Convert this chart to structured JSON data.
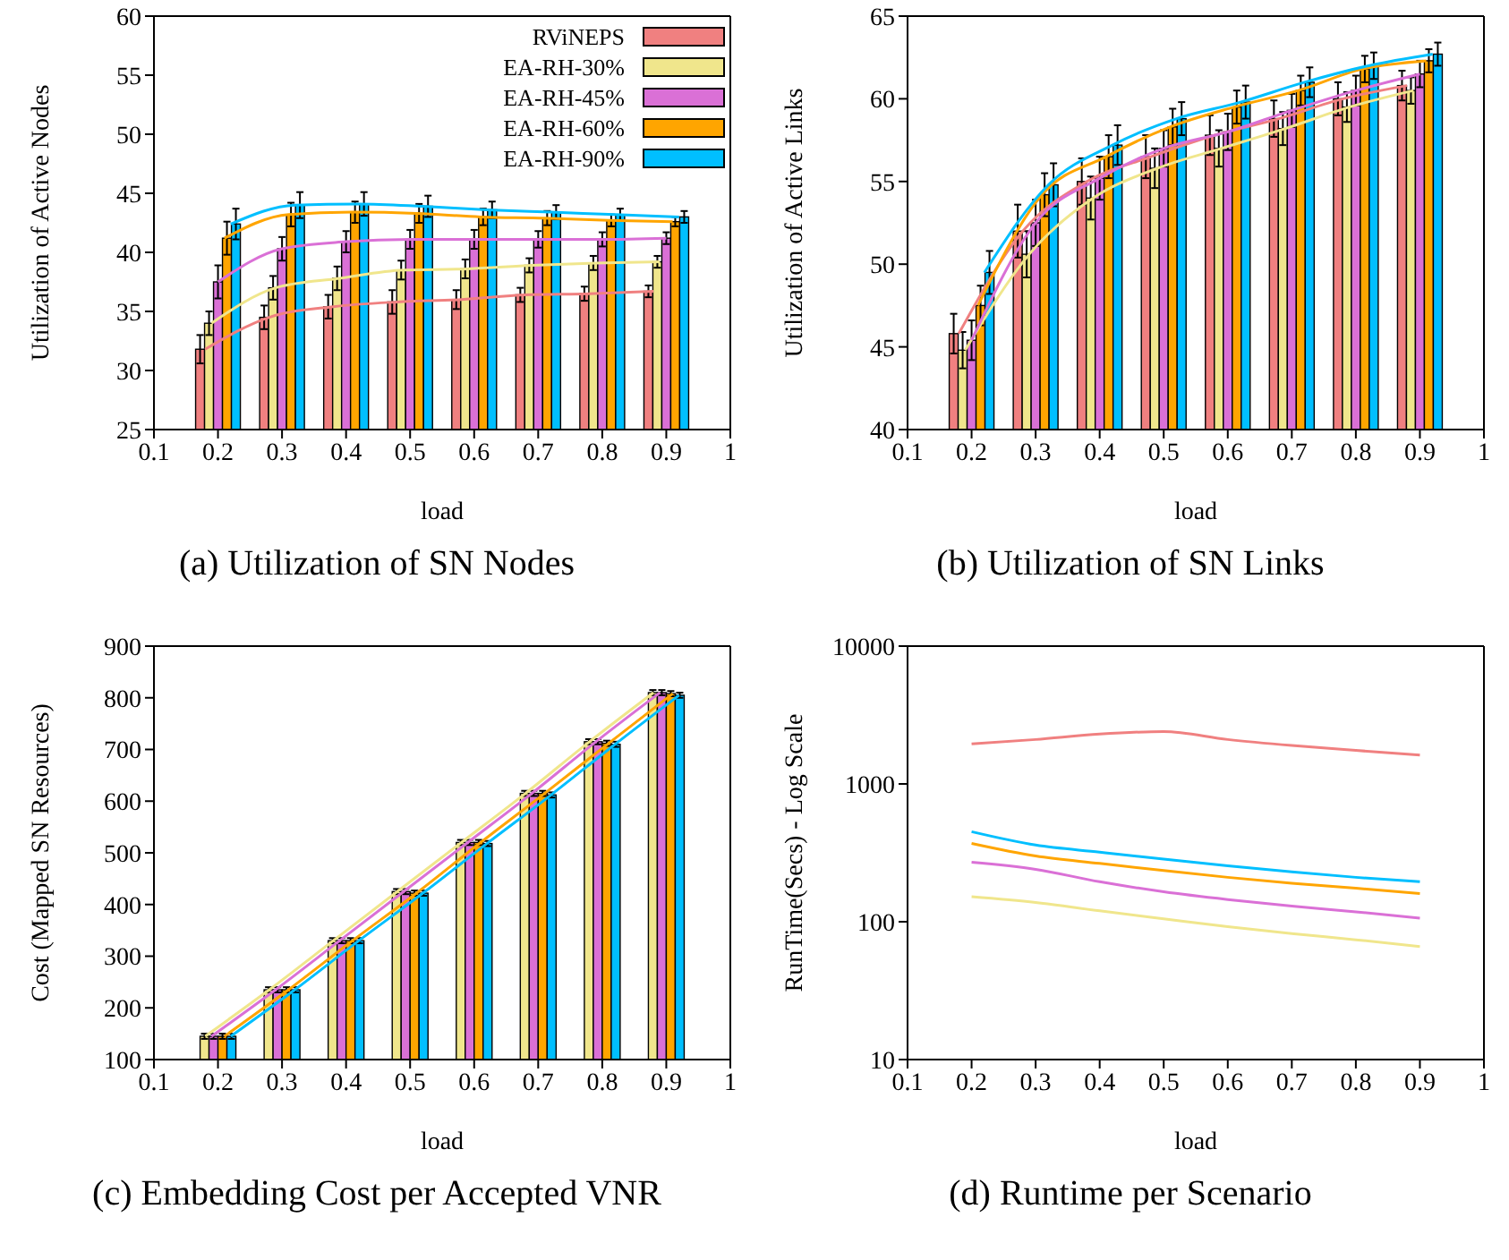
{
  "chart_data": [
    {
      "type": "bar",
      "title": "(a) Utilization of SN Nodes",
      "xlabel": "load",
      "ylabel": "Utilization of Active Nodes",
      "x": [
        0.2,
        0.3,
        0.4,
        0.5,
        0.6,
        0.7,
        0.8,
        0.9
      ],
      "xlim": [
        0.1,
        1
      ],
      "xticks": [
        0.1,
        0.2,
        0.3,
        0.4,
        0.5,
        0.6,
        0.7,
        0.8,
        0.9,
        1
      ],
      "ylim": [
        25,
        60
      ],
      "yticks": [
        25,
        30,
        35,
        40,
        45,
        50,
        55,
        60
      ],
      "legend": "top right",
      "series": [
        {
          "name": "RViNEPS",
          "color": "#f08080",
          "values": [
            31.8,
            34.5,
            35.4,
            35.8,
            36.0,
            36.4,
            36.5,
            36.7
          ],
          "errors": [
            1.2,
            1,
            1,
            1,
            0.8,
            0.6,
            0.6,
            0.5
          ]
        },
        {
          "name": "EA-RH-30%",
          "color": "#f0e68c",
          "values": [
            34.0,
            37.0,
            37.8,
            38.5,
            38.6,
            38.9,
            39.1,
            39.2
          ],
          "errors": [
            1,
            1,
            1,
            0.8,
            0.8,
            0.6,
            0.6,
            0.5
          ]
        },
        {
          "name": "EA-RH-45%",
          "color": "#da70d6",
          "values": [
            37.5,
            40.3,
            40.9,
            41.1,
            41.1,
            41.1,
            41.1,
            41.2
          ],
          "errors": [
            1.4,
            1,
            0.9,
            0.8,
            0.8,
            0.7,
            0.6,
            0.5
          ]
        },
        {
          "name": "EA-RH-60%",
          "color": "#ffa500",
          "values": [
            41.2,
            43.2,
            43.4,
            43.3,
            43.0,
            42.9,
            42.7,
            42.6
          ],
          "errors": [
            1.4,
            1,
            0.9,
            0.8,
            0.7,
            0.6,
            0.5,
            0.4
          ]
        },
        {
          "name": "EA-RH-90%",
          "color": "#00bfff",
          "values": [
            42.4,
            44.0,
            44.1,
            43.9,
            43.6,
            43.4,
            43.2,
            43.0
          ],
          "errors": [
            1.3,
            1.1,
            1,
            0.9,
            0.7,
            0.6,
            0.5,
            0.5
          ]
        },
        {
          "type": "line",
          "color": "#f08080",
          "x": [
            0.18,
            0.28,
            0.38,
            0.48,
            0.58,
            0.68,
            0.78,
            0.88
          ],
          "values": [
            31.8,
            34.5,
            35.4,
            35.8,
            36.0,
            36.4,
            36.5,
            36.7
          ]
        },
        {
          "type": "line",
          "color": "#f0e68c",
          "x": [
            0.19,
            0.29,
            0.39,
            0.49,
            0.59,
            0.69,
            0.79,
            0.89
          ],
          "values": [
            34.0,
            37.0,
            37.8,
            38.5,
            38.6,
            38.9,
            39.1,
            39.2
          ]
        },
        {
          "type": "line",
          "color": "#da70d6",
          "x": [
            0.2,
            0.3,
            0.4,
            0.5,
            0.6,
            0.7,
            0.8,
            0.9
          ],
          "values": [
            37.5,
            40.3,
            40.9,
            41.1,
            41.1,
            41.1,
            41.1,
            41.2
          ]
        },
        {
          "type": "line",
          "color": "#ffa500",
          "x": [
            0.21,
            0.31,
            0.41,
            0.51,
            0.61,
            0.71,
            0.81,
            0.91
          ],
          "values": [
            41.2,
            43.2,
            43.4,
            43.3,
            43.0,
            42.9,
            42.7,
            42.6
          ]
        },
        {
          "type": "line",
          "color": "#00bfff",
          "x": [
            0.22,
            0.32,
            0.42,
            0.52,
            0.62,
            0.72,
            0.82,
            0.92
          ],
          "values": [
            42.4,
            44.0,
            44.1,
            43.9,
            43.6,
            43.4,
            43.2,
            43.0
          ]
        }
      ]
    },
    {
      "type": "bar",
      "title": "(b) Utilization of SN Links",
      "xlabel": "load",
      "ylabel": "Utilization of Active Links",
      "x": [
        0.2,
        0.3,
        0.4,
        0.5,
        0.6,
        0.7,
        0.8,
        0.9
      ],
      "xlim": [
        0.1,
        1
      ],
      "xticks": [
        0.1,
        0.2,
        0.3,
        0.4,
        0.5,
        0.6,
        0.7,
        0.8,
        0.9,
        1
      ],
      "ylim": [
        40,
        65
      ],
      "yticks": [
        40,
        45,
        50,
        55,
        60,
        65
      ],
      "series": [
        {
          "color": "#f08080",
          "values": [
            45.8,
            52.0,
            55.0,
            56.5,
            57.8,
            58.8,
            60.0,
            60.8
          ],
          "errors": [
            1.2,
            1.6,
            1.4,
            1.3,
            1.2,
            1.1,
            1,
            0.9
          ]
        },
        {
          "color": "#f0e68c",
          "values": [
            44.8,
            50.6,
            54.0,
            55.8,
            57.0,
            58.2,
            59.5,
            60.5
          ],
          "errors": [
            1.1,
            1.4,
            1.3,
            1.2,
            1.1,
            1,
            0.9,
            0.8
          ]
        },
        {
          "color": "#da70d6",
          "values": [
            45.4,
            52.5,
            55.2,
            57.0,
            58.0,
            59.3,
            60.5,
            61.5
          ],
          "errors": [
            1.2,
            1.4,
            1.3,
            1.1,
            1.1,
            1,
            0.9,
            0.8
          ]
        },
        {
          "color": "#ffa500",
          "values": [
            47.5,
            54.2,
            56.5,
            58.3,
            59.5,
            60.5,
            61.8,
            62.3
          ],
          "errors": [
            1.2,
            1.3,
            1.3,
            1.1,
            1,
            0.9,
            0.8,
            0.7
          ]
        },
        {
          "color": "#00bfff",
          "values": [
            49.5,
            54.8,
            57.2,
            58.8,
            59.8,
            61.0,
            62.0,
            62.7
          ],
          "errors": [
            1.3,
            1.3,
            1.2,
            1,
            1,
            0.9,
            0.8,
            0.7
          ]
        },
        {
          "type": "line",
          "color": "#f08080",
          "x": [
            0.18,
            0.28,
            0.38,
            0.48,
            0.58,
            0.68,
            0.78,
            0.88
          ],
          "values": [
            45.8,
            52.0,
            55.0,
            56.5,
            57.8,
            58.8,
            60.0,
            60.8
          ]
        },
        {
          "type": "line",
          "color": "#f0e68c",
          "x": [
            0.19,
            0.29,
            0.39,
            0.49,
            0.59,
            0.69,
            0.79,
            0.89
          ],
          "values": [
            44.8,
            50.6,
            54.0,
            55.8,
            57.0,
            58.2,
            59.5,
            60.5
          ]
        },
        {
          "type": "line",
          "color": "#da70d6",
          "x": [
            0.2,
            0.3,
            0.4,
            0.5,
            0.6,
            0.7,
            0.8,
            0.9
          ],
          "values": [
            45.4,
            52.5,
            55.2,
            57.0,
            58.0,
            59.3,
            60.5,
            61.5
          ]
        },
        {
          "type": "line",
          "color": "#ffa500",
          "x": [
            0.21,
            0.31,
            0.41,
            0.51,
            0.61,
            0.71,
            0.81,
            0.91
          ],
          "values": [
            47.5,
            54.2,
            56.5,
            58.3,
            59.5,
            60.5,
            61.8,
            62.3
          ]
        },
        {
          "type": "line",
          "color": "#00bfff",
          "x": [
            0.22,
            0.32,
            0.42,
            0.52,
            0.62,
            0.72,
            0.82,
            0.92
          ],
          "values": [
            49.5,
            54.8,
            57.2,
            58.8,
            59.8,
            61.0,
            62.0,
            62.7
          ]
        }
      ]
    },
    {
      "type": "bar",
      "title": "(c) Embedding Cost per Accepted VNR",
      "xlabel": "load",
      "ylabel": "Cost (Mapped SN Resources)",
      "x": [
        0.2,
        0.3,
        0.4,
        0.5,
        0.6,
        0.7,
        0.8,
        0.9
      ],
      "xlim": [
        0.1,
        1
      ],
      "xticks": [
        0.1,
        0.2,
        0.3,
        0.4,
        0.5,
        0.6,
        0.7,
        0.8,
        0.9,
        1
      ],
      "ylim": [
        100,
        900
      ],
      "yticks": [
        100,
        200,
        300,
        400,
        500,
        600,
        700,
        800,
        900
      ],
      "series": [
        {
          "color": "#f0e68c",
          "values": [
            145,
            235,
            330,
            425,
            520,
            615,
            715,
            810
          ],
          "errors": [
            5,
            5,
            5,
            5,
            5,
            5,
            5,
            5
          ]
        },
        {
          "color": "#da70d6",
          "values": [
            145,
            235,
            330,
            425,
            520,
            615,
            715,
            810
          ],
          "errors": [
            5,
            5,
            5,
            5,
            5,
            5,
            5,
            5
          ]
        },
        {
          "color": "#ffa500",
          "values": [
            145,
            235,
            330,
            422,
            520,
            615,
            712,
            808
          ],
          "errors": [
            5,
            5,
            5,
            5,
            5,
            5,
            5,
            5
          ]
        },
        {
          "color": "#00bfff",
          "values": [
            145,
            235,
            330,
            422,
            518,
            612,
            710,
            805
          ],
          "errors": [
            5,
            5,
            5,
            5,
            5,
            5,
            5,
            5
          ]
        },
        {
          "type": "line",
          "color": "#f0e68c",
          "x": [
            0.18,
            0.28,
            0.38,
            0.48,
            0.58,
            0.68,
            0.78,
            0.88
          ],
          "values": [
            145,
            235,
            330,
            425,
            520,
            615,
            715,
            810
          ]
        },
        {
          "type": "line",
          "color": "#da70d6",
          "x": [
            0.19,
            0.29,
            0.39,
            0.49,
            0.59,
            0.69,
            0.79,
            0.89
          ],
          "values": [
            145,
            235,
            330,
            425,
            520,
            615,
            715,
            810
          ]
        },
        {
          "type": "line",
          "color": "#ffa500",
          "x": [
            0.21,
            0.31,
            0.41,
            0.51,
            0.61,
            0.71,
            0.81,
            0.91
          ],
          "values": [
            145,
            235,
            330,
            422,
            520,
            615,
            712,
            808
          ]
        },
        {
          "type": "line",
          "color": "#00bfff",
          "x": [
            0.22,
            0.32,
            0.42,
            0.52,
            0.62,
            0.72,
            0.82,
            0.92
          ],
          "values": [
            145,
            235,
            330,
            422,
            518,
            612,
            710,
            805
          ]
        }
      ]
    },
    {
      "type": "line",
      "title": "(d) Runtime per Scenario",
      "xlabel": "load",
      "ylabel": "RunTime(Secs) - Log Scale",
      "x": [
        0.2,
        0.3,
        0.4,
        0.5,
        0.6,
        0.7,
        0.8,
        0.9
      ],
      "xlim": [
        0.1,
        1
      ],
      "xticks": [
        0.1,
        0.2,
        0.3,
        0.4,
        0.5,
        0.6,
        0.7,
        0.8,
        0.9,
        1
      ],
      "ylim": [
        10,
        10000
      ],
      "yticks": [
        10,
        100,
        1000,
        10000
      ],
      "log": true,
      "series": [
        {
          "color": "#f08080",
          "values": [
            1950,
            2100,
            2300,
            2400,
            2100,
            1900,
            1750,
            1620
          ]
        },
        {
          "color": "#f0e68c",
          "values": [
            152,
            138,
            120,
            105,
            92,
            82,
            74,
            66
          ]
        },
        {
          "color": "#da70d6",
          "values": [
            270,
            240,
            195,
            165,
            145,
            130,
            118,
            106
          ]
        },
        {
          "color": "#ffa500",
          "values": [
            370,
            300,
            265,
            235,
            210,
            190,
            175,
            160
          ]
        },
        {
          "color": "#00bfff",
          "values": [
            450,
            360,
            320,
            285,
            255,
            230,
            210,
            195
          ]
        }
      ]
    }
  ]
}
